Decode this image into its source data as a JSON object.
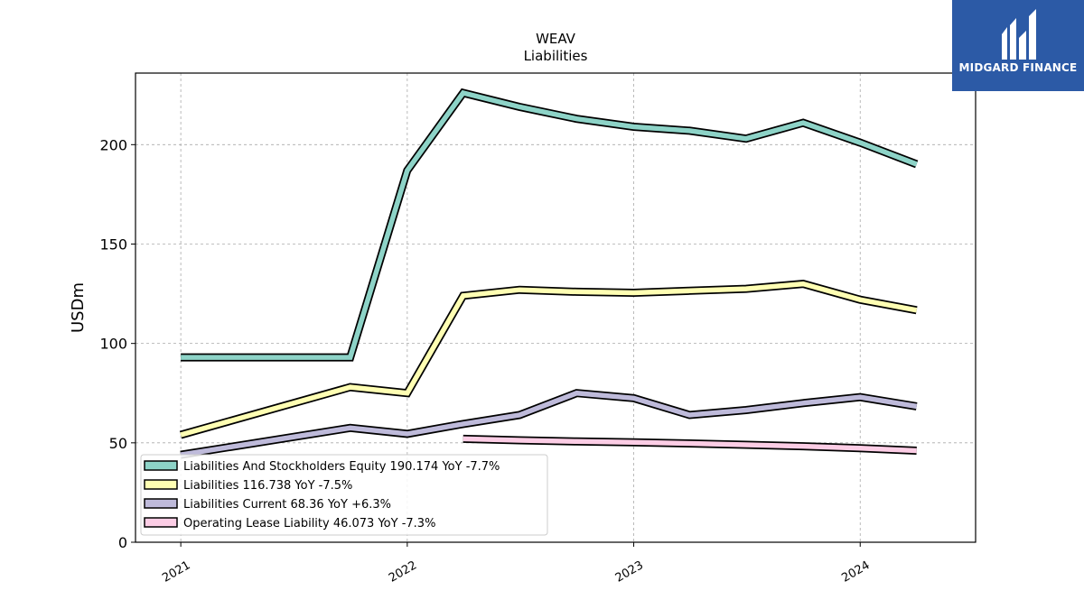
{
  "chart_data": {
    "type": "line",
    "title": "WEAV",
    "subtitle": "Liabilities",
    "ylabel": "USDm",
    "xlabel": "",
    "ylim": [
      0,
      236
    ],
    "yticks": [
      0,
      50,
      100,
      150,
      200
    ],
    "xticks": [
      "2021",
      "2022",
      "2023",
      "2024"
    ],
    "grid": true,
    "legend_position": "lower-left",
    "series": [
      {
        "name": "Liabilities And Stockholders Equity",
        "legend": "Liabilities And Stockholders Equity  190.174 YoY -7.7%",
        "color": "#8dd3c7",
        "points": [
          [
            "2021-01-01",
            93
          ],
          [
            "2021-10-01",
            93
          ],
          [
            "2022-01-01",
            187
          ],
          [
            "2022-04-01",
            226
          ],
          [
            "2022-07-01",
            219
          ],
          [
            "2022-10-01",
            213
          ],
          [
            "2023-01-01",
            209
          ],
          [
            "2023-04-01",
            207
          ],
          [
            "2023-07-01",
            203
          ],
          [
            "2023-10-01",
            211
          ],
          [
            "2024-01-01",
            201
          ],
          [
            "2024-04-01",
            190.174
          ]
        ]
      },
      {
        "name": "Liabilities",
        "legend": "Liabilities  116.738 YoY -7.5%",
        "color": "#ffffb3",
        "points": [
          [
            "2021-01-01",
            54
          ],
          [
            "2021-10-01",
            78
          ],
          [
            "2022-01-01",
            75
          ],
          [
            "2022-04-01",
            124
          ],
          [
            "2022-07-01",
            127
          ],
          [
            "2022-10-01",
            126
          ],
          [
            "2023-01-01",
            125.5
          ],
          [
            "2023-04-01",
            126.5
          ],
          [
            "2023-07-01",
            127.5
          ],
          [
            "2023-10-01",
            130
          ],
          [
            "2024-01-01",
            122
          ],
          [
            "2024-04-01",
            116.738
          ]
        ]
      },
      {
        "name": "Liabilities Current",
        "legend": "Liabilities Current  68.36 YoY +6.3%",
        "color": "#bebada",
        "points": [
          [
            "2021-01-01",
            44
          ],
          [
            "2021-10-01",
            57.5
          ],
          [
            "2022-01-01",
            54.5
          ],
          [
            "2022-04-01",
            59.5
          ],
          [
            "2022-07-01",
            64
          ],
          [
            "2022-10-01",
            75
          ],
          [
            "2023-01-01",
            72.5
          ],
          [
            "2023-04-01",
            64
          ],
          [
            "2023-07-01",
            66.5
          ],
          [
            "2023-10-01",
            70
          ],
          [
            "2024-01-01",
            73
          ],
          [
            "2024-04-01",
            68.36
          ]
        ]
      },
      {
        "name": "Operating Lease Liability",
        "legend": "Operating Lease Liability  46.073 YoY -7.3%",
        "color": "#fccde5",
        "points": [
          [
            "2022-04-01",
            52
          ],
          [
            "2022-07-01",
            51.3
          ],
          [
            "2022-10-01",
            50.7
          ],
          [
            "2023-01-01",
            50.3
          ],
          [
            "2023-04-01",
            49.7
          ],
          [
            "2023-07-01",
            49
          ],
          [
            "2023-10-01",
            48.3
          ],
          [
            "2024-01-01",
            47.3
          ],
          [
            "2024-04-01",
            46.073
          ]
        ]
      }
    ]
  },
  "logo": {
    "text": "MIDGARD FINANCE",
    "background": "#2c5aa6"
  }
}
